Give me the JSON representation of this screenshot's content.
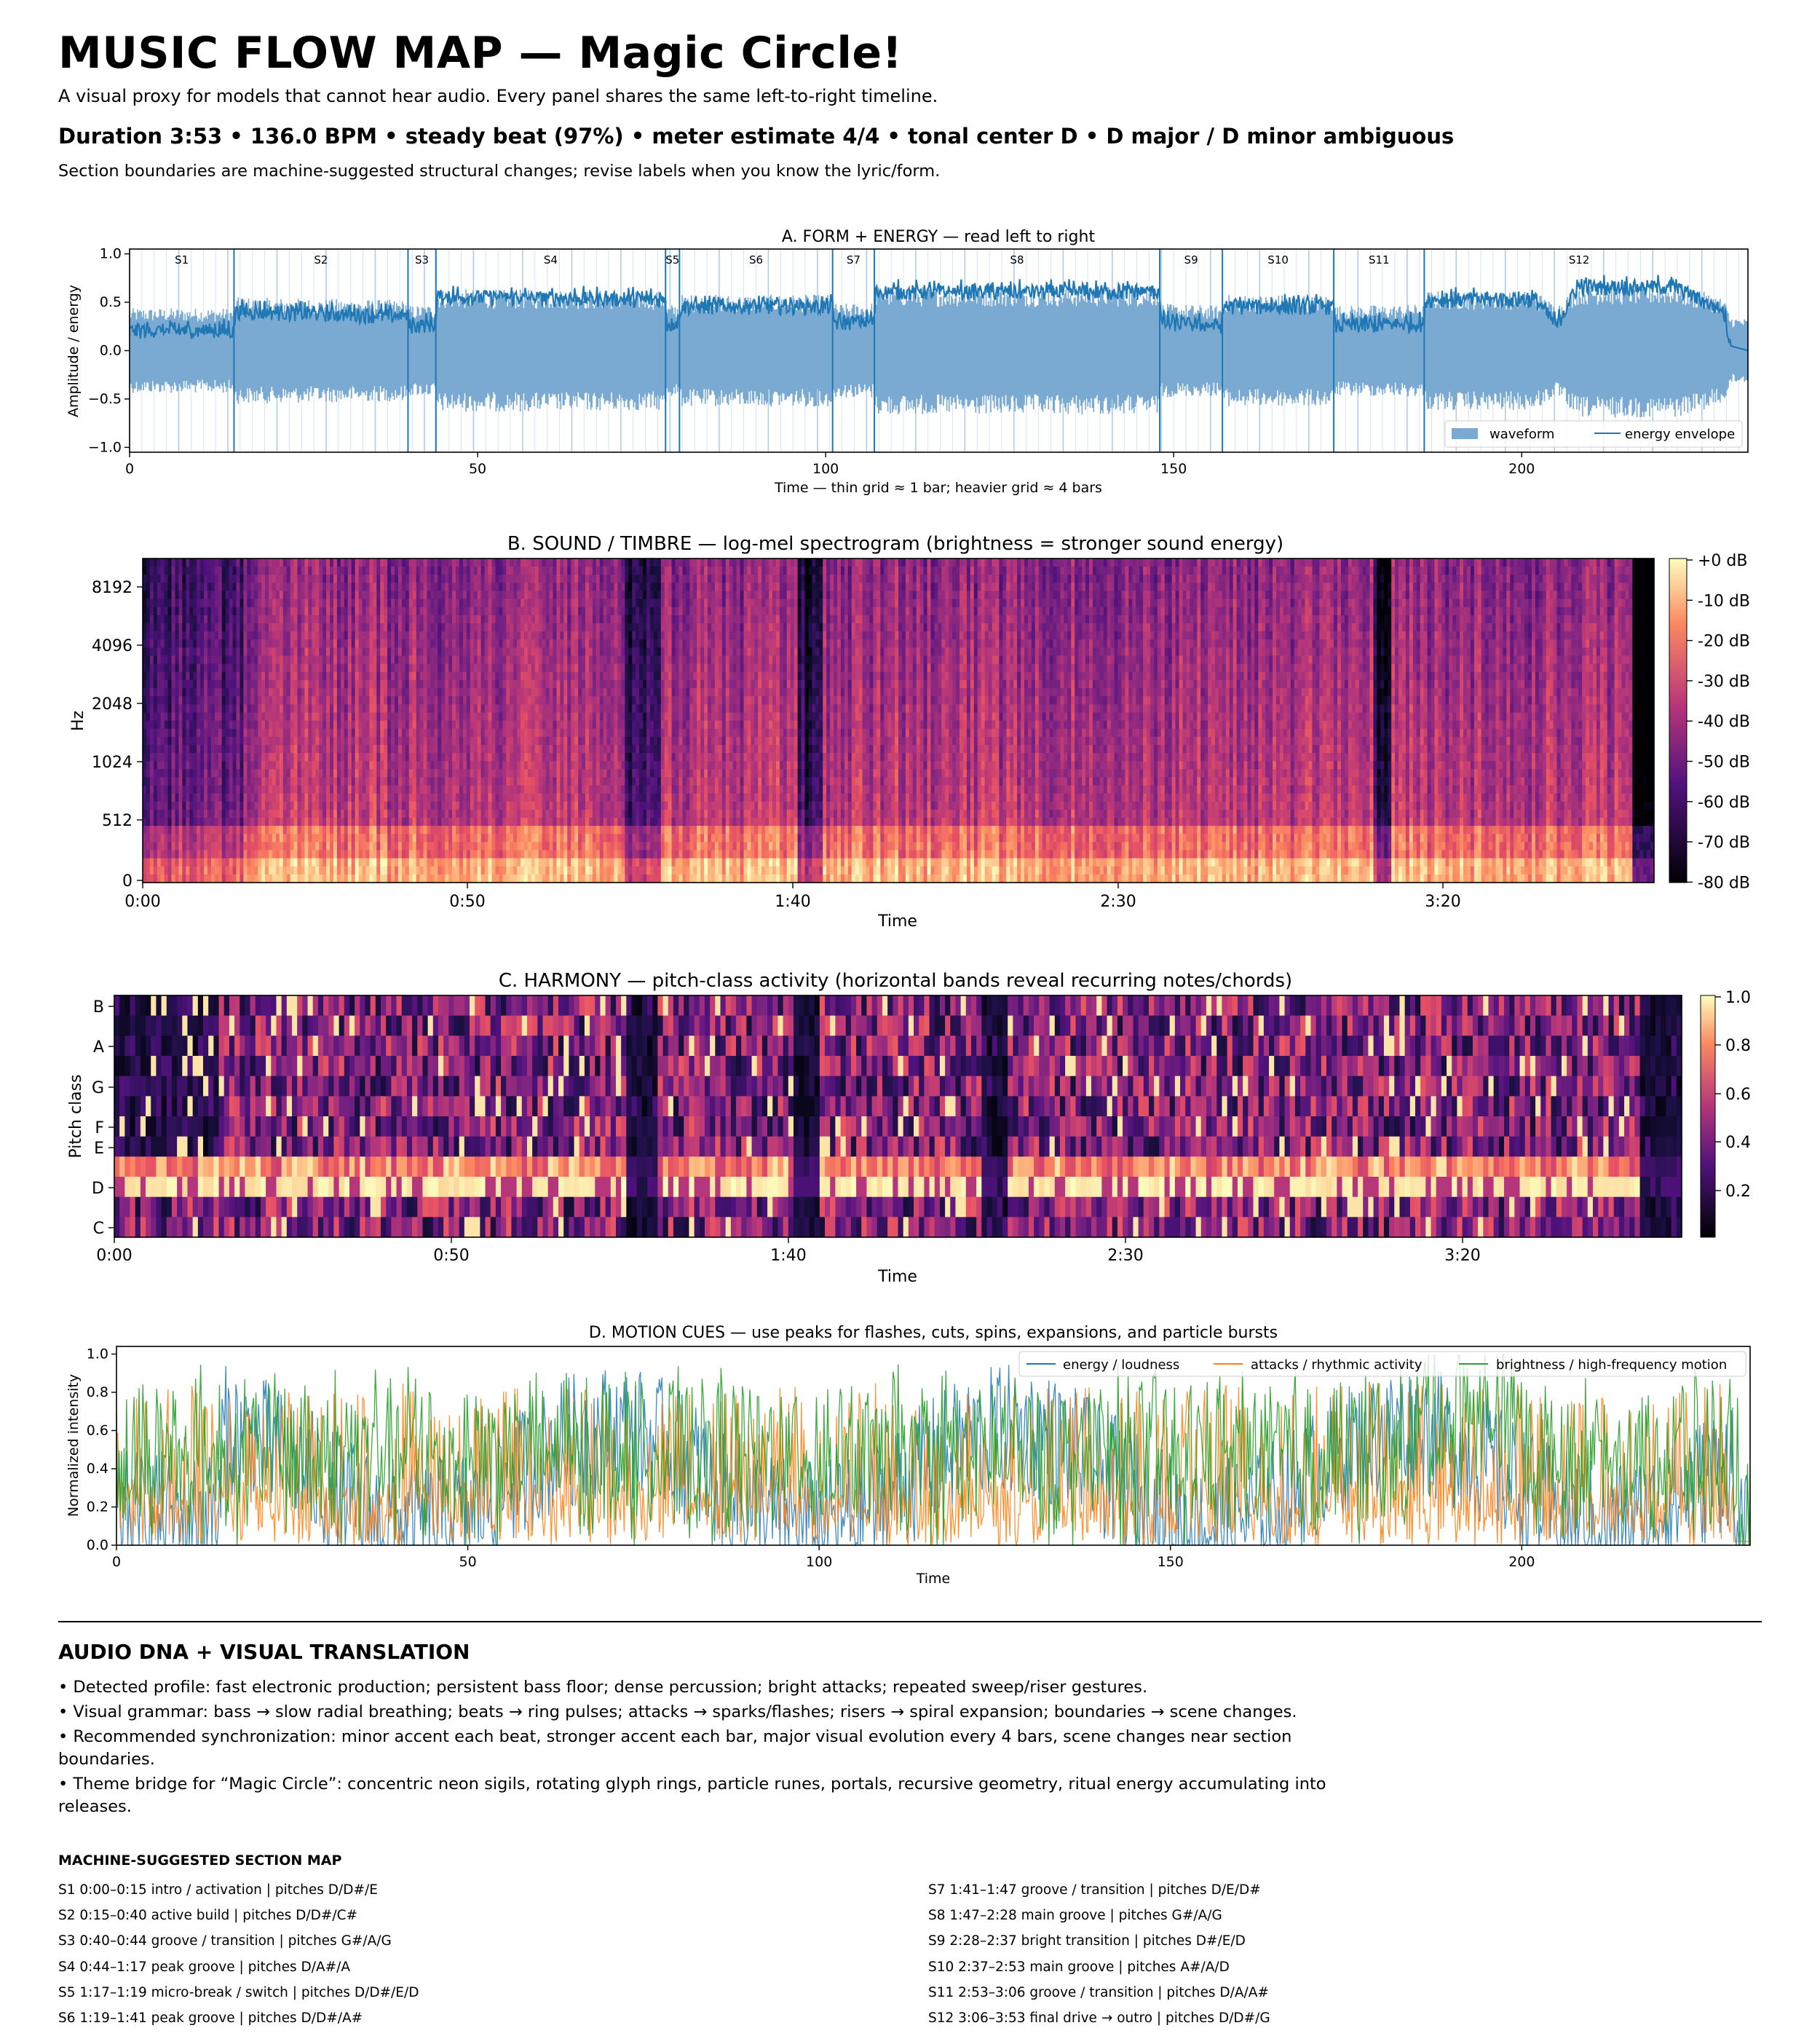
{
  "header": {
    "title": "MUSIC FLOW MAP — Magic Circle!",
    "subtitle": "A visual proxy for models that cannot hear audio. Every panel shares the same left-to-right timeline.",
    "stats": "Duration 3:53  •  136.0 BPM  •  steady beat (97%)  •  meter estimate 4/4  •  tonal center D  •  D major / D minor ambiguous",
    "note": "Section boundaries are machine-suggested structural changes; revise labels when you know the lyric/form."
  },
  "chart_data": [
    {
      "id": "A",
      "type": "area",
      "title": "A. FORM + ENERGY — read left to right",
      "xlabel": "Time — thin grid ≈ 1 bar; heavier grid ≈ 4 bars",
      "ylabel": "Amplitude / energy",
      "xlim": [
        0,
        232.5
      ],
      "ylim": [
        -1.05,
        1.05
      ],
      "xticks": [
        0,
        50,
        100,
        150,
        200
      ],
      "yticks": [
        -1.0,
        -0.5,
        0.0,
        0.5,
        1.0
      ],
      "legend": {
        "position": "bottom-right",
        "entries": [
          "waveform",
          "energy envelope"
        ]
      },
      "colors": {
        "waveform": "#7aaad2",
        "envelope": "#1f77b4",
        "grid": "#a9c7e6"
      },
      "section_labels": [
        "S1",
        "S2",
        "S3",
        "S4",
        "S5",
        "S6",
        "S7",
        "S8",
        "S9",
        "S10",
        "S11",
        "S12"
      ],
      "section_boundaries": [
        15.0,
        40.0,
        44.0,
        77.0,
        79.0,
        101.0,
        107.0,
        148.0,
        157.0,
        173.0,
        186.0
      ],
      "energy_envelope": {
        "x": [
          0,
          15,
          15.2,
          40,
          40.2,
          44,
          44.2,
          77,
          77.2,
          79,
          79.2,
          101,
          101.2,
          107,
          107.2,
          148,
          148.2,
          157,
          157.2,
          173,
          173.2,
          186,
          186.2,
          202,
          205,
          208,
          222,
          229,
          230,
          232.5
        ],
        "y": [
          0.2,
          0.2,
          0.4,
          0.35,
          0.25,
          0.27,
          0.55,
          0.52,
          0.25,
          0.3,
          0.45,
          0.45,
          0.28,
          0.3,
          0.6,
          0.6,
          0.28,
          0.25,
          0.45,
          0.45,
          0.25,
          0.27,
          0.52,
          0.52,
          0.25,
          0.65,
          0.65,
          0.4,
          0.05,
          0.0
        ]
      }
    },
    {
      "id": "B",
      "type": "heatmap",
      "title": "B. SOUND / TIMBRE — log-mel spectrogram (brightness = stronger sound energy)",
      "xlabel": "Time",
      "ylabel": "Hz",
      "xtick_labels": [
        "0:00",
        "0:50",
        "1:40",
        "2:30",
        "3:20"
      ],
      "ytick_labels": [
        "0",
        "512",
        "1024",
        "2048",
        "4096",
        "8192"
      ],
      "colorbar_ticks": [
        "+0 dB",
        "-10 dB",
        "-20 dB",
        "-30 dB",
        "-40 dB",
        "-50 dB",
        "-60 dB",
        "-70 dB",
        "-80 dB"
      ],
      "colormap": "magma"
    },
    {
      "id": "C",
      "type": "heatmap",
      "title": "C. HARMONY — pitch-class activity (horizontal bands reveal recurring notes/chords)",
      "xlabel": "Time",
      "ylabel": "Pitch class",
      "xtick_labels": [
        "0:00",
        "0:50",
        "1:40",
        "2:30",
        "3:20"
      ],
      "ytick_labels": [
        "C",
        "D",
        "E",
        "F",
        "G",
        "A",
        "B"
      ],
      "colorbar_ticks": [
        "1.0",
        "0.8",
        "0.6",
        "0.4",
        "0.2"
      ],
      "colormap": "magma"
    },
    {
      "id": "D",
      "type": "line",
      "title": "D. MOTION CUES — use peaks for flashes, cuts, spins, expansions, and particle bursts",
      "xlabel": "Time",
      "ylabel": "Normalized intensity",
      "xlim": [
        0,
        232.5
      ],
      "ylim": [
        0,
        1.04
      ],
      "xticks": [
        0,
        50,
        100,
        150,
        200
      ],
      "yticks": [
        0.0,
        0.2,
        0.4,
        0.6,
        0.8,
        1.0
      ],
      "legend": {
        "position": "top-right"
      },
      "series": [
        {
          "name": "energy / loudness",
          "color": "#1f77b4"
        },
        {
          "name": "attacks / rhythmic activity",
          "color": "#ff7f0e"
        },
        {
          "name": "brightness / high-frequency motion",
          "color": "#2ca02c"
        }
      ]
    }
  ],
  "dna": {
    "title": "AUDIO DNA + VISUAL TRANSLATION",
    "items": [
      "• Detected profile: fast electronic production; persistent bass floor; dense percussion; bright attacks; repeated sweep/riser gestures.",
      "• Visual grammar: bass → slow radial breathing; beats → ring pulses; attacks → sparks/flashes; risers → spiral expansion; boundaries → scene changes.",
      "• Recommended synchronization: minor accent each beat, stronger accent each bar, major visual evolution every 4 bars, scene changes near section boundaries.",
      "• Theme bridge for “Magic Circle”: concentric neon sigils, rotating glyph rings, particle runes, portals, recursive geometry, ritual energy accumulating into releases."
    ]
  },
  "sections": {
    "title": "MACHINE-SUGGESTED SECTION MAP",
    "left": [
      "S1  0:00–0:15  intro / activation  |  pitches D/D#/E",
      "S2  0:15–0:40  active build  |  pitches D/D#/C#",
      "S3  0:40–0:44  groove / transition  |  pitches G#/A/G",
      "S4  0:44–1:17  peak groove  |  pitches D/A#/A",
      "S5  1:17–1:19  micro-break / switch  |  pitches D/D#/E/D",
      "S6  1:19–1:41  peak groove  |  pitches D/D#/A#"
    ],
    "right": [
      "S7  1:41–1:47  groove / transition  |  pitches D/E/D#",
      "S8  1:47–2:28  main groove  |  pitches G#/A/G",
      "S9  2:28–2:37  bright transition  |  pitches D#/E/D",
      "S10  2:37–2:53  main groove  |  pitches A#/A/D",
      "S11  2:53–3:06  groove / transition  |  pitches D/A/A#",
      "S12  3:06–3:53  final drive → outro  |  pitches D/D#/G"
    ]
  }
}
